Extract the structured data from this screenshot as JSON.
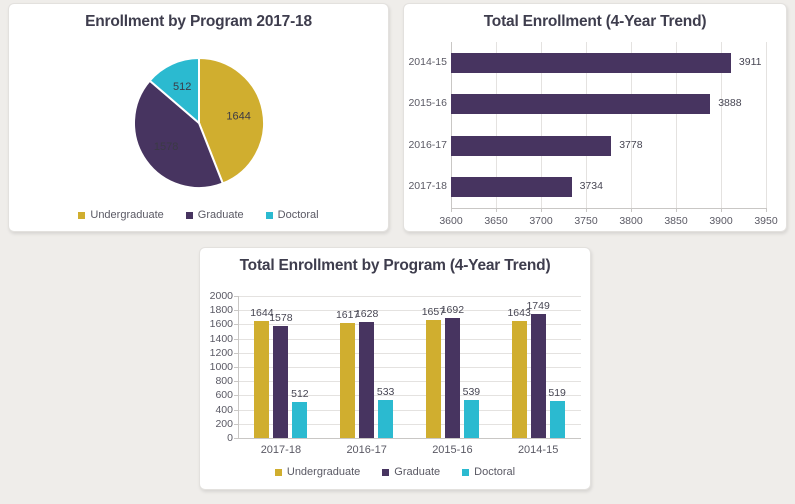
{
  "chart_data": [
    {
      "type": "pie",
      "title": "Enrollment by Program 2017-18",
      "labels": [
        "Undergraduate",
        "Graduate",
        "Doctoral"
      ],
      "values": [
        1644,
        1578,
        512
      ],
      "colors": [
        "#D0AE2F",
        "#473460",
        "#2BBAD0"
      ],
      "data_labels": [
        1644,
        1578,
        512
      ],
      "start_angle_deg": 0,
      "direction": "clockwise",
      "legend_position": "bottom"
    },
    {
      "type": "bar",
      "orientation": "horizontal",
      "title": "Total Enrollment (4-Year Trend)",
      "categories": [
        "2014-15",
        "2015-16",
        "2016-17",
        "2017-18"
      ],
      "values": [
        3911,
        3888,
        3778,
        3734
      ],
      "bar_color": "#473460",
      "xlabel": "",
      "ylabel": "",
      "xlim": [
        3600,
        3950
      ],
      "xticks": [
        3600,
        3650,
        3700,
        3750,
        3800,
        3850,
        3900,
        3950
      ],
      "grid": true,
      "data_labels": true,
      "legend_position": "none"
    },
    {
      "type": "bar",
      "orientation": "vertical",
      "title": "Total Enrollment by Program (4-Year Trend)",
      "categories": [
        "2017-18",
        "2016-17",
        "2015-16",
        "2014-15"
      ],
      "series": [
        {
          "name": "Undergraduate",
          "color": "#D0AE2F",
          "values": [
            1644,
            1617,
            1657,
            1643
          ]
        },
        {
          "name": "Graduate",
          "color": "#473460",
          "values": [
            1578,
            1628,
            1692,
            1749
          ]
        },
        {
          "name": "Doctoral",
          "color": "#2BBAD0",
          "values": [
            512,
            533,
            539,
            519
          ]
        }
      ],
      "xlabel": "",
      "ylabel": "",
      "ylim": [
        0,
        2000
      ],
      "yticks": [
        0,
        200,
        400,
        600,
        800,
        1000,
        1200,
        1400,
        1600,
        1800,
        2000
      ],
      "grid": true,
      "data_labels": true,
      "legend_position": "bottom"
    }
  ]
}
